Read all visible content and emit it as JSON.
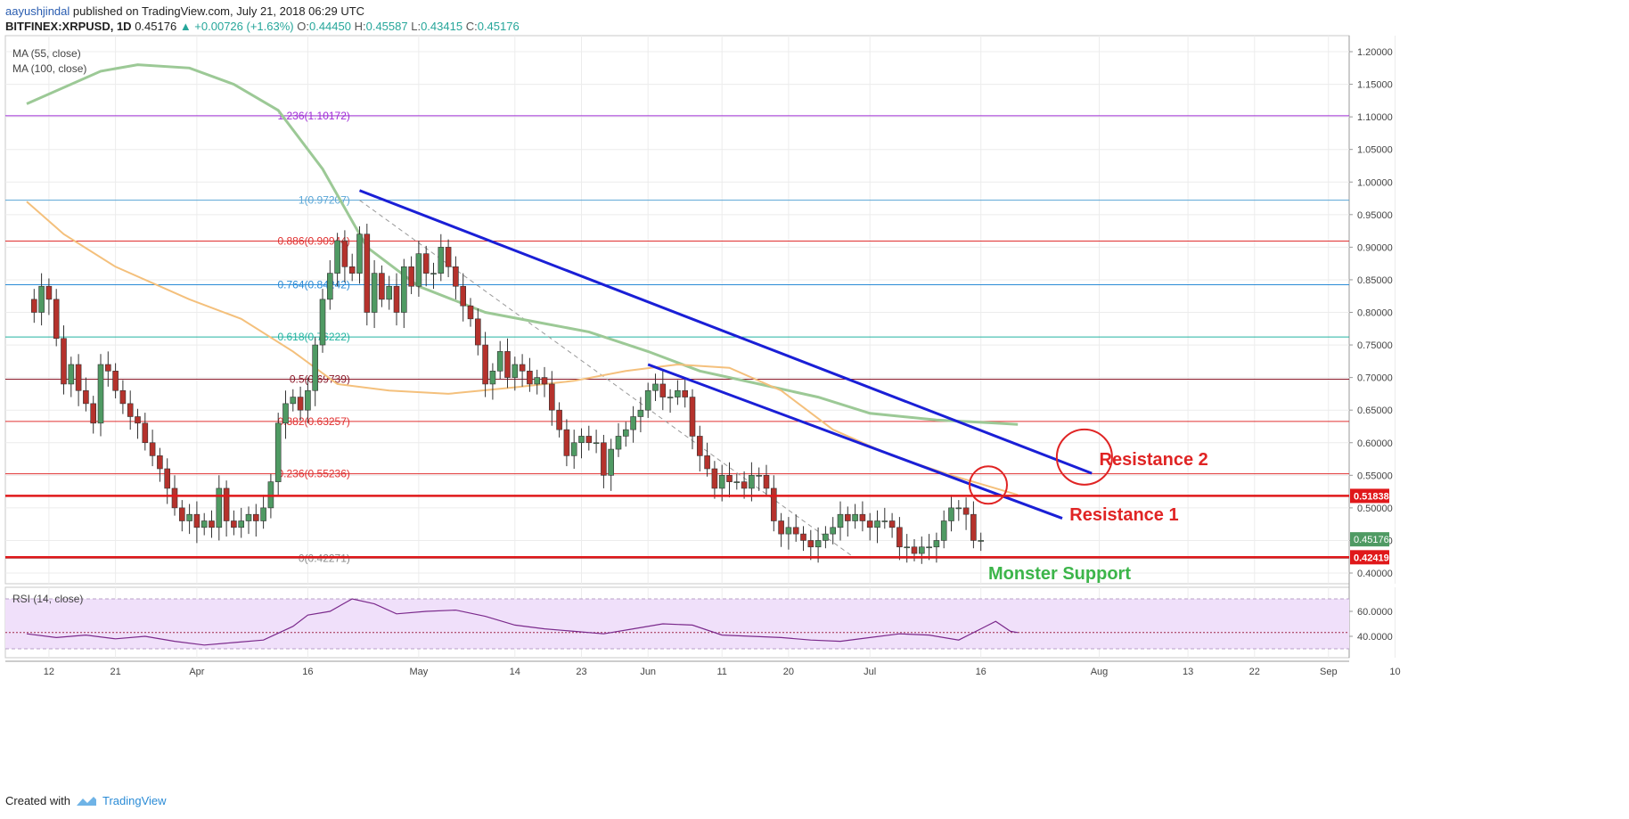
{
  "header": {
    "author": "aayushjindal",
    "published_text": "published on TradingView.com, July 21, 2018 06:29 UTC",
    "symbol": "BITFINEX:XRPUSD, 1D",
    "last": "0.45176",
    "change": "▲ +0.00726 (+1.63%)",
    "o_label": "O:",
    "o_value": "0.44450",
    "h_label": "H:",
    "h_value": "0.45587",
    "l_label": "L:",
    "l_value": "0.43415",
    "c_label": "C:",
    "c_value": "0.45176"
  },
  "legend": {
    "ma55": "MA (55, close)",
    "ma100": "MA (100, close)",
    "rsi": "RSI (14, close)"
  },
  "footer": {
    "created_with": "Created with",
    "brand": "TradingView"
  },
  "colors": {
    "up": "#26a69a",
    "candle_up_fill": "#4f9a63",
    "candle_down_fill": "#b5322c",
    "ma55": "#9cc996",
    "ma100": "#f4c07c",
    "trendline": "#1a1fd6",
    "red_level": "#e0181a",
    "annotation_red": "#e02424",
    "support_green": "#3cb54a",
    "rsi_fill": "#f0e0fa",
    "rsi_line": "#7b2a8c"
  },
  "chart_data": {
    "type": "candlestick",
    "symbol": "BITFINEX:XRPUSD",
    "timeframe": "1D",
    "y_axis": {
      "min": 0.38,
      "max": 1.22,
      "ticks": [
        "1.20000",
        "1.15000",
        "1.10000",
        "1.05000",
        "1.00000",
        "0.95000",
        "0.90000",
        "0.85000",
        "0.80000",
        "0.75000",
        "0.70000",
        "0.65000",
        "0.60000",
        "0.55000",
        "0.50000",
        "0.45000",
        "0.40000"
      ],
      "tick_values": [
        1.2,
        1.15,
        1.1,
        1.05,
        1.0,
        0.95,
        0.9,
        0.85,
        0.8,
        0.75,
        0.7,
        0.65,
        0.6,
        0.55,
        0.5,
        0.45,
        0.4
      ]
    },
    "x_axis": {
      "start_date": "2018-03-09",
      "end_date": "2018-09-14",
      "ticks": [
        {
          "date": "2018-03-12",
          "label": "12"
        },
        {
          "date": "2018-03-21",
          "label": "21"
        },
        {
          "date": "2018-04-01",
          "label": "Apr"
        },
        {
          "date": "2018-04-16",
          "label": "16"
        },
        {
          "date": "2018-05-01",
          "label": "May"
        },
        {
          "date": "2018-05-14",
          "label": "14"
        },
        {
          "date": "2018-05-23",
          "label": "23"
        },
        {
          "date": "2018-06-01",
          "label": "Jun"
        },
        {
          "date": "2018-06-11",
          "label": "11"
        },
        {
          "date": "2018-06-20",
          "label": "20"
        },
        {
          "date": "2018-07-01",
          "label": "Jul"
        },
        {
          "date": "2018-07-16",
          "label": "16"
        },
        {
          "date": "2018-08-01",
          "label": "Aug"
        },
        {
          "date": "2018-08-13",
          "label": "13"
        },
        {
          "date": "2018-08-22",
          "label": "22"
        },
        {
          "date": "2018-09-01",
          "label": "Sep"
        },
        {
          "date": "2018-09-10",
          "label": "10"
        }
      ]
    },
    "candles_start_date": "2018-03-09",
    "candles_close": [
      0.82,
      0.8,
      0.84,
      0.82,
      0.76,
      0.69,
      0.72,
      0.68,
      0.66,
      0.63,
      0.72,
      0.71,
      0.68,
      0.66,
      0.64,
      0.63,
      0.6,
      0.58,
      0.56,
      0.53,
      0.5,
      0.48,
      0.49,
      0.47,
      0.48,
      0.47,
      0.53,
      0.48,
      0.47,
      0.48,
      0.49,
      0.48,
      0.5,
      0.54,
      0.63,
      0.66,
      0.67,
      0.65,
      0.68,
      0.75,
      0.82,
      0.86,
      0.91,
      0.87,
      0.86,
      0.92,
      0.8,
      0.86,
      0.82,
      0.84,
      0.8,
      0.87,
      0.84,
      0.89,
      0.86,
      0.86,
      0.9,
      0.87,
      0.84,
      0.81,
      0.79,
      0.75,
      0.69,
      0.71,
      0.74,
      0.7,
      0.72,
      0.71,
      0.69,
      0.7,
      0.69,
      0.65,
      0.62,
      0.58,
      0.6,
      0.61,
      0.6,
      0.6,
      0.55,
      0.59,
      0.61,
      0.62,
      0.64,
      0.65,
      0.68,
      0.69,
      0.67,
      0.67,
      0.68,
      0.67,
      0.61,
      0.58,
      0.56,
      0.53,
      0.55,
      0.54,
      0.54,
      0.53,
      0.55,
      0.55,
      0.53,
      0.48,
      0.46,
      0.47,
      0.46,
      0.45,
      0.44,
      0.45,
      0.46,
      0.47,
      0.49,
      0.48,
      0.49,
      0.48,
      0.47,
      0.48,
      0.48,
      0.47,
      0.44,
      0.44,
      0.43,
      0.44,
      0.44,
      0.45,
      0.48,
      0.5,
      0.5,
      0.49,
      0.45,
      0.45
    ],
    "ma55": [
      {
        "date": "2018-03-09",
        "value": 1.12
      },
      {
        "date": "2018-03-19",
        "value": 1.17
      },
      {
        "date": "2018-03-24",
        "value": 1.18
      },
      {
        "date": "2018-03-31",
        "value": 1.175
      },
      {
        "date": "2018-04-06",
        "value": 1.15
      },
      {
        "date": "2018-04-12",
        "value": 1.11
      },
      {
        "date": "2018-04-18",
        "value": 1.02
      },
      {
        "date": "2018-04-24",
        "value": 0.9
      },
      {
        "date": "2018-05-01",
        "value": 0.84
      },
      {
        "date": "2018-05-10",
        "value": 0.8
      },
      {
        "date": "2018-05-17",
        "value": 0.785
      },
      {
        "date": "2018-05-24",
        "value": 0.77
      },
      {
        "date": "2018-06-01",
        "value": 0.74
      },
      {
        "date": "2018-06-08",
        "value": 0.71
      },
      {
        "date": "2018-06-16",
        "value": 0.69
      },
      {
        "date": "2018-06-24",
        "value": 0.67
      },
      {
        "date": "2018-07-01",
        "value": 0.645
      },
      {
        "date": "2018-07-10",
        "value": 0.635
      },
      {
        "date": "2018-07-18",
        "value": 0.63
      },
      {
        "date": "2018-07-21",
        "value": 0.628
      }
    ],
    "ma100": [
      {
        "date": "2018-03-09",
        "value": 0.97
      },
      {
        "date": "2018-03-14",
        "value": 0.92
      },
      {
        "date": "2018-03-21",
        "value": 0.87
      },
      {
        "date": "2018-03-31",
        "value": 0.82
      },
      {
        "date": "2018-04-07",
        "value": 0.79
      },
      {
        "date": "2018-04-14",
        "value": 0.74
      },
      {
        "date": "2018-04-20",
        "value": 0.69
      },
      {
        "date": "2018-04-27",
        "value": 0.68
      },
      {
        "date": "2018-05-05",
        "value": 0.675
      },
      {
        "date": "2018-05-14",
        "value": 0.685
      },
      {
        "date": "2018-05-22",
        "value": 0.695
      },
      {
        "date": "2018-05-29",
        "value": 0.71
      },
      {
        "date": "2018-06-05",
        "value": 0.72
      },
      {
        "date": "2018-06-12",
        "value": 0.715
      },
      {
        "date": "2018-06-19",
        "value": 0.68
      },
      {
        "date": "2018-06-26",
        "value": 0.62
      },
      {
        "date": "2018-07-04",
        "value": 0.58
      },
      {
        "date": "2018-07-12",
        "value": 0.55
      },
      {
        "date": "2018-07-21",
        "value": 0.52
      }
    ],
    "fib_levels": [
      {
        "label": "1.236(1.10172)",
        "value": 1.10172,
        "color": "#a02ed6"
      },
      {
        "label": "1(0.97207)",
        "value": 0.97207,
        "color": "#5aa6d6"
      },
      {
        "label": "0.886(0.90944)",
        "value": 0.90944,
        "color": "#e03030"
      },
      {
        "label": "0.764(0.84242)",
        "value": 0.84242,
        "color": "#2a8bd6"
      },
      {
        "label": "0.618(0.76222)",
        "value": 0.76222,
        "color": "#23b3a0"
      },
      {
        "label": "0.5(0.69739)",
        "value": 0.69739,
        "color": "#8b1a2a"
      },
      {
        "label": "0.382(0.63257)",
        "value": 0.63257,
        "color": "#e03030"
      },
      {
        "label": "0.236(0.55236)",
        "value": 0.55236,
        "color": "#e03030"
      },
      {
        "label": "0(0.42271)",
        "value": 0.42271,
        "color": "#888888"
      }
    ],
    "fib_label_date": "2018-04-21",
    "horizontal_levels": [
      {
        "value": 0.51838,
        "label": "0.51838"
      },
      {
        "value": 0.42419,
        "label": "0.42419"
      }
    ],
    "last_price": {
      "value": 0.45176,
      "label": "0.45176"
    },
    "trendlines": [
      {
        "name": "upper",
        "start": {
          "date": "2018-04-23",
          "value": 0.987
        },
        "end": {
          "date": "2018-07-31",
          "value": 0.553
        }
      },
      {
        "name": "lower",
        "start": {
          "date": "2018-06-01",
          "value": 0.72
        },
        "end": {
          "date": "2018-07-27",
          "value": 0.484
        }
      }
    ],
    "dashed_fib_line": {
      "start": {
        "date": "2018-04-23",
        "value": 0.97207
      },
      "end": {
        "date": "2018-06-29",
        "value": 0.42271
      }
    },
    "annotations": [
      {
        "text": "Resistance 2",
        "date": "2018-08-01",
        "value": 0.575,
        "circle": {
          "date": "2018-07-30",
          "value": 0.578
        }
      },
      {
        "text": "Resistance 1",
        "date": "2018-07-28",
        "value": 0.49,
        "circle": {
          "date": "2018-07-17",
          "value": 0.535
        }
      },
      {
        "text": "Monster Support",
        "date": "2018-07-17",
        "value": 0.4
      }
    ],
    "rsi": {
      "min": 25,
      "max": 75,
      "ticks": [
        "60.0000",
        "40.0000"
      ],
      "tick_values": [
        60,
        40
      ],
      "band_upper": 70,
      "band_lower": 30,
      "mid": 43,
      "series": [
        {
          "date": "2018-03-09",
          "value": 42
        },
        {
          "date": "2018-03-13",
          "value": 39
        },
        {
          "date": "2018-03-17",
          "value": 41
        },
        {
          "date": "2018-03-21",
          "value": 38
        },
        {
          "date": "2018-03-25",
          "value": 40
        },
        {
          "date": "2018-03-29",
          "value": 36
        },
        {
          "date": "2018-04-02",
          "value": 33
        },
        {
          "date": "2018-04-06",
          "value": 35
        },
        {
          "date": "2018-04-10",
          "value": 37
        },
        {
          "date": "2018-04-14",
          "value": 48
        },
        {
          "date": "2018-04-16",
          "value": 57
        },
        {
          "date": "2018-04-19",
          "value": 60
        },
        {
          "date": "2018-04-22",
          "value": 70
        },
        {
          "date": "2018-04-25",
          "value": 66
        },
        {
          "date": "2018-04-28",
          "value": 58
        },
        {
          "date": "2018-05-02",
          "value": 60
        },
        {
          "date": "2018-05-06",
          "value": 61
        },
        {
          "date": "2018-05-10",
          "value": 56
        },
        {
          "date": "2018-05-14",
          "value": 49
        },
        {
          "date": "2018-05-18",
          "value": 46
        },
        {
          "date": "2018-05-22",
          "value": 44
        },
        {
          "date": "2018-05-26",
          "value": 42
        },
        {
          "date": "2018-05-30",
          "value": 46
        },
        {
          "date": "2018-06-03",
          "value": 50
        },
        {
          "date": "2018-06-07",
          "value": 49
        },
        {
          "date": "2018-06-11",
          "value": 41
        },
        {
          "date": "2018-06-15",
          "value": 40
        },
        {
          "date": "2018-06-19",
          "value": 39
        },
        {
          "date": "2018-06-23",
          "value": 37
        },
        {
          "date": "2018-06-27",
          "value": 36
        },
        {
          "date": "2018-07-01",
          "value": 39
        },
        {
          "date": "2018-07-05",
          "value": 42
        },
        {
          "date": "2018-07-09",
          "value": 41
        },
        {
          "date": "2018-07-13",
          "value": 37
        },
        {
          "date": "2018-07-16",
          "value": 46
        },
        {
          "date": "2018-07-18",
          "value": 52
        },
        {
          "date": "2018-07-20",
          "value": 44
        },
        {
          "date": "2018-07-21",
          "value": 43
        }
      ]
    }
  }
}
